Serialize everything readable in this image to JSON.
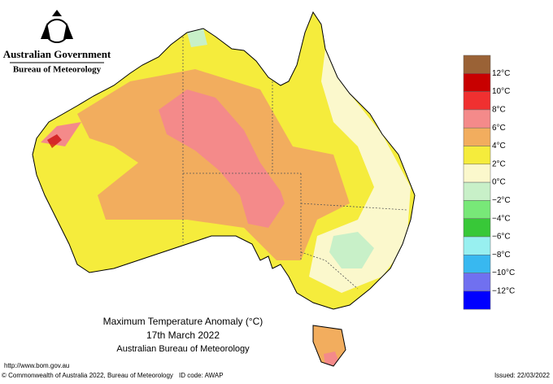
{
  "header": {
    "government": "Australian Government",
    "bureau": "Bureau of Meteorology"
  },
  "map_title": {
    "line1": "Maximum Temperature Anomaly (°C)",
    "line2": "17th March 2022",
    "line3": "Australian Bureau of Meteorology"
  },
  "legend": {
    "labels": [
      "12°C",
      "10°C",
      "8°C",
      "6°C",
      "4°C",
      "2°C",
      "0°C",
      "−2°C",
      "−4°C",
      "−6°C",
      "−8°C",
      "−10°C",
      "−12°C"
    ],
    "colors": [
      "#9a6236",
      "#c80000",
      "#f03030",
      "#f48a8a",
      "#f2ad5e",
      "#f5ec3c",
      "#fbf8cc",
      "#c8f0c8",
      "#78e878",
      "#38c838",
      "#98f0f0",
      "#38b8f0",
      "#7070f0",
      "#0000ff"
    ]
  },
  "footer": {
    "url": "http://www.bom.gov.au",
    "copyright": "© Commonwealth of Australia 2022, Bureau of Meteorology",
    "id_code": "ID code: AWAP",
    "issued": "Issued: 22/03/2022"
  }
}
